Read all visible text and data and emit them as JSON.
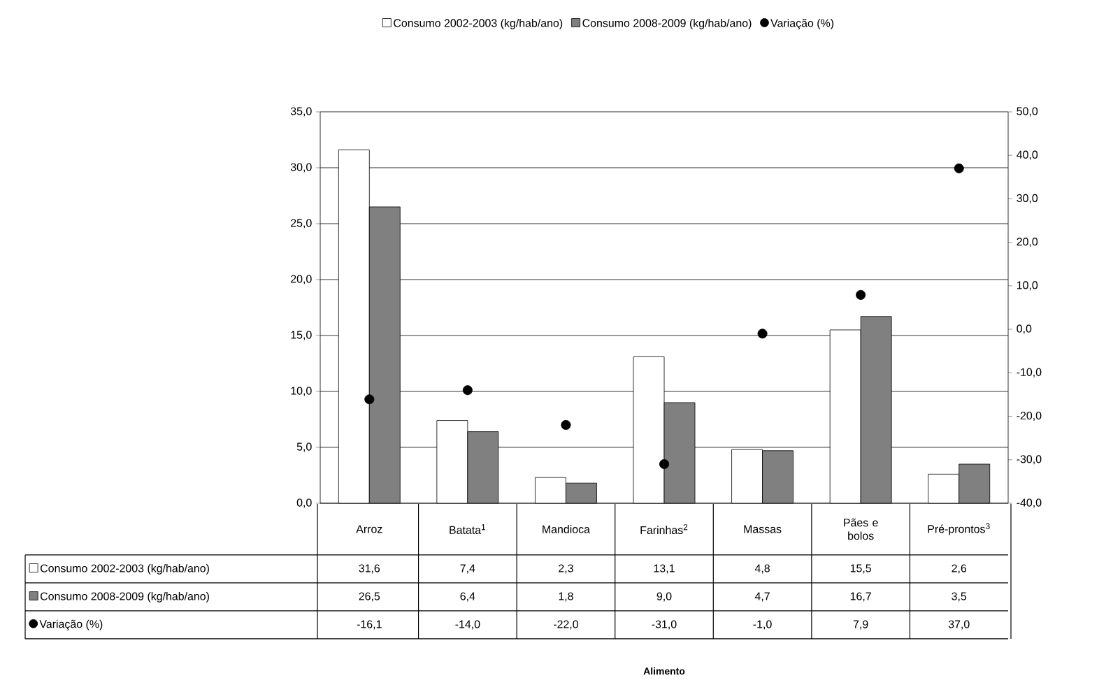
{
  "chart_data": {
    "type": "bar",
    "annotations": [
      "Alimento"
    ],
    "categories": [
      "Arroz",
      "Batata$^{1}$",
      "Mandioca",
      "Farinhas$^{2}$",
      "Massas",
      "Pães e bolos",
      "Pré-prontos$^{3}$"
    ],
    "series": [
      {
        "name": "Consumo 2002-2003 (kg/hab/ano)",
        "color": "#ffffff",
        "values": [
          31.6,
          7.4,
          2.3,
          13.1,
          4.8,
          15.5,
          2.6
        ],
        "value_labels": [
          "31,6",
          "7,4",
          "2,3",
          "13,1",
          "4,8",
          "15,5",
          "2,6"
        ]
      },
      {
        "name": "Consumo 2008-2009 (kg/hab/ano)",
        "color": "#808080",
        "values": [
          26.5,
          6.4,
          1.8,
          9.0,
          4.7,
          16.7,
          3.5
        ],
        "value_labels": [
          "26,5",
          "6,4",
          "1,8",
          "9,0",
          "4,7",
          "16,7",
          "3,5"
        ]
      },
      {
        "name": "Variação (%)",
        "type": "scatter",
        "axis": "y2",
        "color": "#000000",
        "values": [
          -16.1,
          -14.0,
          -22.0,
          -31.0,
          -1.0,
          7.9,
          37.0
        ],
        "value_labels": [
          "-16,1",
          "-14,0",
          "-22,0",
          "-31,0",
          "-1,0",
          "7,9",
          "37,0"
        ]
      }
    ],
    "ylim": [
      0,
      35
    ],
    "yticks": [
      {
        "value": 0,
        "label": "0,0"
      },
      {
        "value": 5,
        "label": "5,0"
      },
      {
        "value": 10,
        "label": "10,0"
      },
      {
        "value": 15,
        "label": "15,0"
      },
      {
        "value": 20,
        "label": "20,0"
      },
      {
        "value": 25,
        "label": "25,0"
      },
      {
        "value": 30,
        "label": "30,0"
      },
      {
        "value": 35,
        "label": "35,0"
      }
    ],
    "y2lim": [
      -40,
      50
    ],
    "y2ticks": [
      {
        "value": -40,
        "label": "-40,0"
      },
      {
        "value": -30,
        "label": "-30,0"
      },
      {
        "value": -20,
        "label": "-20,0"
      },
      {
        "value": -10,
        "label": "-10,0"
      },
      {
        "value": 0,
        "label": "0,0"
      },
      {
        "value": 10,
        "label": "10,0"
      },
      {
        "value": 20,
        "label": "20,0"
      },
      {
        "value": 30,
        "label": "30,0"
      },
      {
        "value": 40,
        "label": "40,0"
      },
      {
        "value": 50,
        "label": "50,0"
      }
    ],
    "grid": "y",
    "legend": "top",
    "marker": "circle"
  }
}
